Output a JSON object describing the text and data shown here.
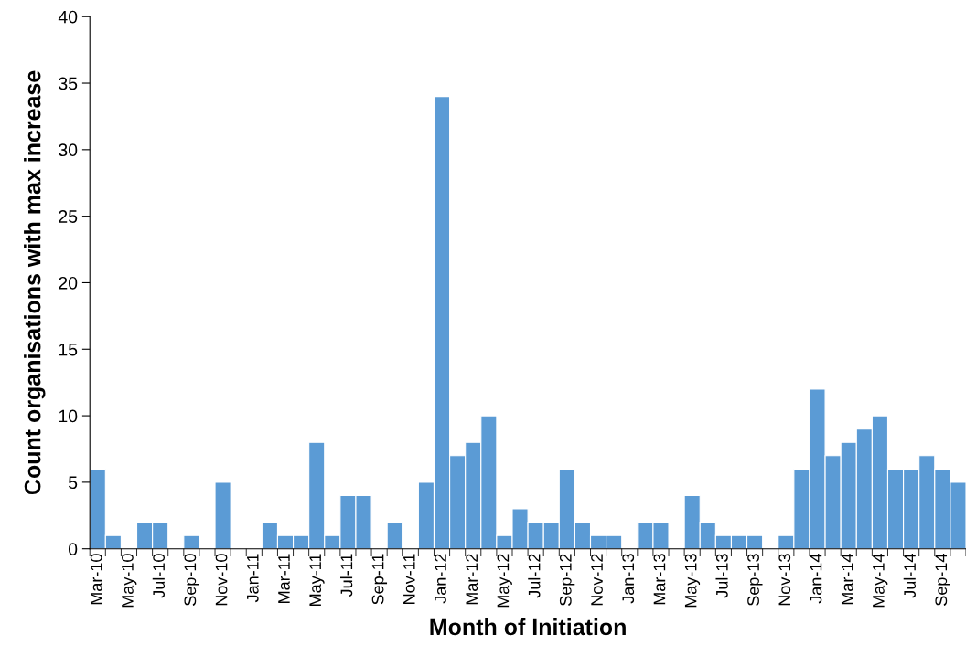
{
  "chart_data": {
    "type": "bar",
    "xlabel": "Month of Initiation",
    "ylabel": "Count organisations with max increase",
    "categories": [
      "Mar-10",
      null,
      "May-10",
      null,
      "Jul-10",
      null,
      "Sep-10",
      null,
      "Nov-10",
      null,
      "Jan-11",
      null,
      "Mar-11",
      null,
      "May-11",
      null,
      "Jul-11",
      null,
      "Sep-11",
      null,
      "Nov-11",
      null,
      "Jan-12",
      null,
      "Mar-12",
      null,
      "May-12",
      null,
      "Jul-12",
      null,
      "Sep-12",
      null,
      "Nov-12",
      null,
      "Jan-13",
      null,
      "Mar-13",
      null,
      "May-13",
      null,
      "Jul-13",
      null,
      "Sep-13",
      null,
      "Nov-13",
      null,
      "Jan-14",
      null,
      "Mar-14",
      null,
      "May-14",
      null,
      "Jul-14",
      null,
      "Sep-14",
      null
    ],
    "values": [
      6,
      1,
      0,
      2,
      2,
      0,
      1,
      0,
      5,
      0,
      0,
      2,
      1,
      1,
      8,
      1,
      4,
      4,
      0,
      2,
      0,
      5,
      34,
      7,
      8,
      10,
      1,
      3,
      2,
      2,
      6,
      2,
      1,
      1,
      0,
      2,
      2,
      0,
      4,
      2,
      1,
      1,
      1,
      0,
      1,
      6,
      12,
      7,
      8,
      9,
      10,
      6,
      6,
      7,
      6,
      5
    ],
    "color": "#5b9bd5",
    "ylim": [
      0,
      40
    ],
    "yticks": [
      0,
      5,
      10,
      15,
      20,
      25,
      30,
      35,
      40
    ],
    "grid": false,
    "legend": false
  }
}
